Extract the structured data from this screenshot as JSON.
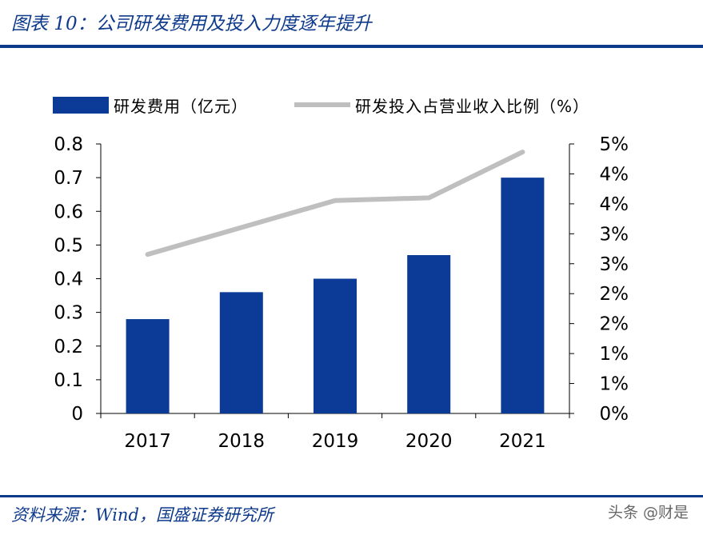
{
  "header": {
    "title": "图表 10：公司研发费用及投入力度逐年提升"
  },
  "footer": {
    "source": "资料来源：Wind，国盛证券研究所"
  },
  "watermark": {
    "text": "头条 @财是"
  },
  "colors": {
    "brand": "#0e3a8c",
    "bar": "#0b3b96",
    "line": "#bfbfbf"
  },
  "chart_data": {
    "type": "bar+line",
    "title": "图表 10：公司研发费用及投入力度逐年提升",
    "categories": [
      "2017",
      "2018",
      "2019",
      "2020",
      "2021"
    ],
    "series": [
      {
        "name": "研发费用（亿元）",
        "type": "bar",
        "axis": "left",
        "values": [
          0.28,
          0.36,
          0.4,
          0.47,
          0.7
        ]
      },
      {
        "name": "研发投入占营业收入比例（%）",
        "type": "line",
        "axis": "right",
        "values": [
          2.95,
          3.45,
          3.95,
          4.0,
          4.85
        ]
      }
    ],
    "left_axis": {
      "range": [
        0,
        0.8
      ],
      "ticks": [
        0,
        0.1,
        0.2,
        0.3,
        0.4,
        0.5,
        0.6,
        0.7,
        0.8
      ],
      "tick_labels": [
        "0",
        "0.1",
        "0.2",
        "0.3",
        "0.4",
        "0.5",
        "0.6",
        "0.7",
        "0.8"
      ]
    },
    "right_axis": {
      "range": [
        0,
        5
      ],
      "tick_labels": [
        "0%",
        "1%",
        "1%",
        "2%",
        "2%",
        "3%",
        "3%",
        "4%",
        "4%",
        "5%"
      ]
    },
    "legend_position": "top",
    "grid": false
  }
}
